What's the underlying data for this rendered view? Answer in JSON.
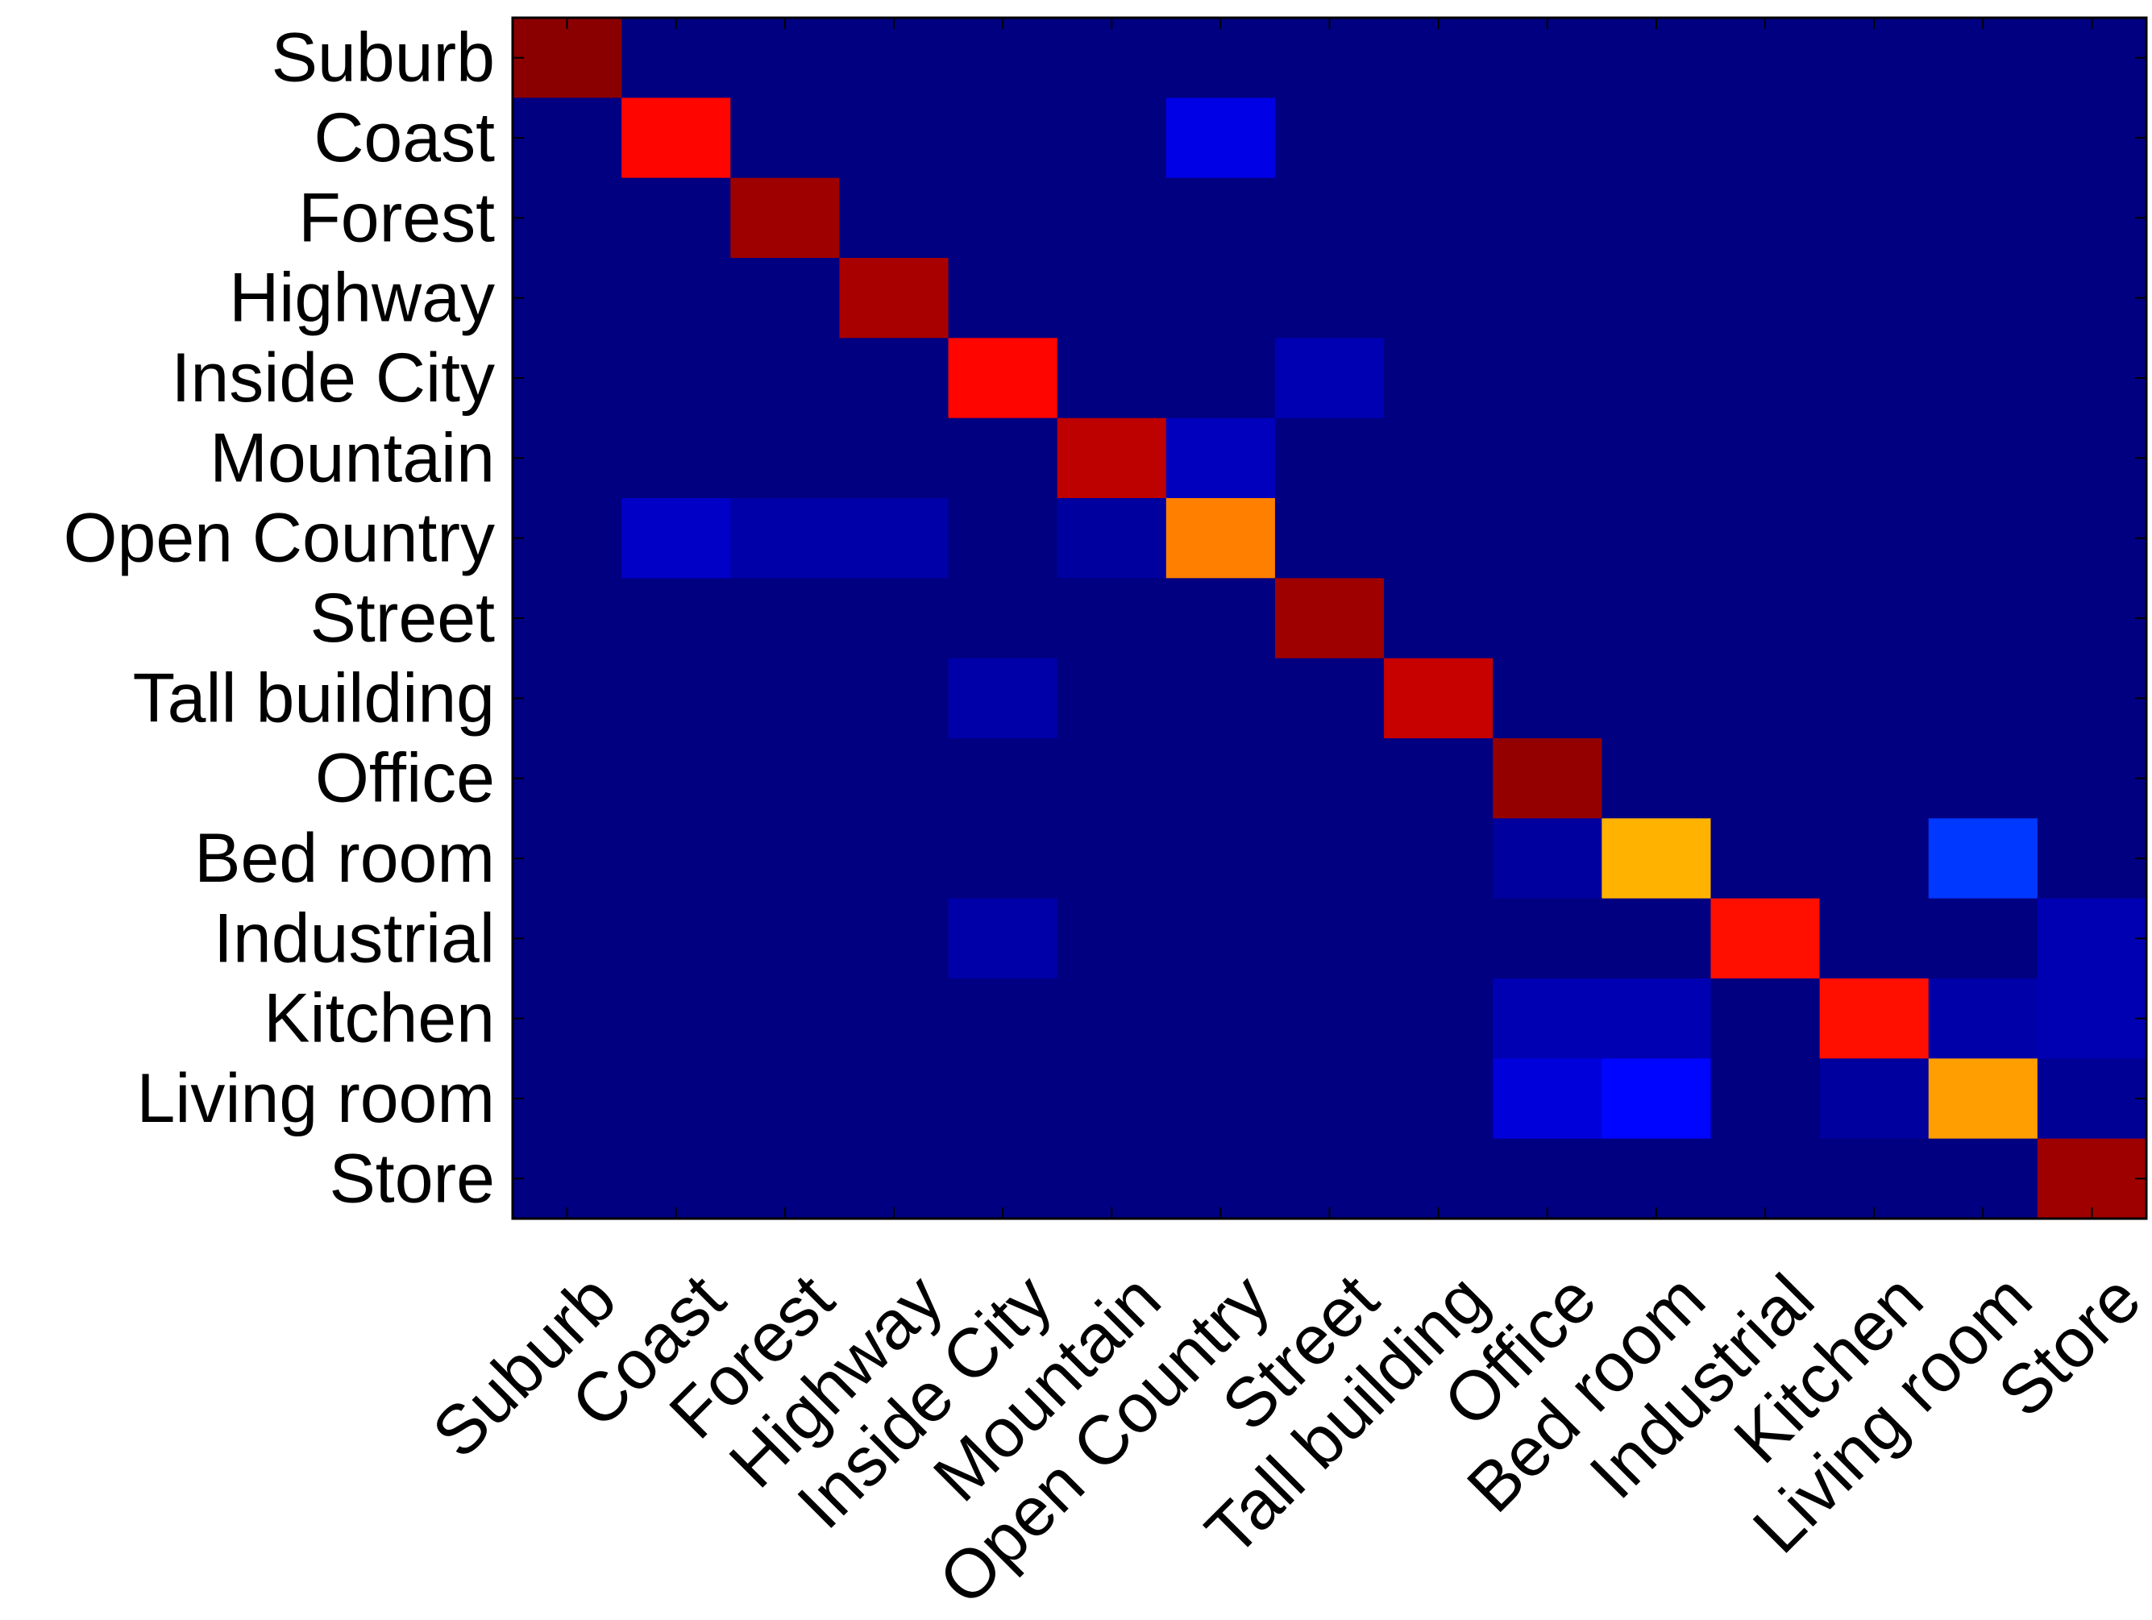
{
  "chart_data": {
    "type": "heatmap",
    "title": "",
    "xlabel": "",
    "ylabel": "",
    "colormap": "jet",
    "value_range": [
      0,
      1
    ],
    "rows": [
      "Suburb",
      "Coast",
      "Forest",
      "Highway",
      "Inside City",
      "Mountain",
      "Open Country",
      "Street",
      "Tall building",
      "Office",
      "Bed room",
      "Industrial",
      "Kitchen",
      "Living room",
      "Store"
    ],
    "columns": [
      "Suburb",
      "Coast",
      "Forest",
      "Highway",
      "Inside City",
      "Mountain",
      "Open Country",
      "Street",
      "Tall building",
      "Office",
      "Bed room",
      "Industrial",
      "Kitchen",
      "Living room",
      "Store"
    ],
    "values": [
      [
        0.99,
        0.0,
        0.0,
        0.0,
        0.0,
        0.0,
        0.0,
        0.0,
        0.0,
        0.0,
        0.0,
        0.0,
        0.0,
        0.0,
        0.0
      ],
      [
        0.0,
        0.87,
        0.0,
        0.0,
        0.0,
        0.0,
        0.1,
        0.0,
        0.0,
        0.0,
        0.0,
        0.0,
        0.0,
        0.0,
        0.0
      ],
      [
        0.0,
        0.0,
        0.97,
        0.0,
        0.0,
        0.0,
        0.0,
        0.0,
        0.0,
        0.0,
        0.0,
        0.0,
        0.0,
        0.0,
        0.0
      ],
      [
        0.0,
        0.0,
        0.0,
        0.96,
        0.0,
        0.0,
        0.0,
        0.0,
        0.0,
        0.0,
        0.0,
        0.0,
        0.0,
        0.0,
        0.0
      ],
      [
        0.0,
        0.0,
        0.0,
        0.0,
        0.87,
        0.0,
        0.0,
        0.05,
        0.0,
        0.0,
        0.0,
        0.0,
        0.0,
        0.0,
        0.0
      ],
      [
        0.0,
        0.0,
        0.0,
        0.0,
        0.0,
        0.94,
        0.06,
        0.0,
        0.0,
        0.0,
        0.0,
        0.0,
        0.0,
        0.0,
        0.0
      ],
      [
        0.0,
        0.07,
        0.04,
        0.04,
        0.0,
        0.03,
        0.75,
        0.0,
        0.0,
        0.0,
        0.0,
        0.0,
        0.0,
        0.0,
        0.0
      ],
      [
        0.0,
        0.0,
        0.0,
        0.0,
        0.0,
        0.0,
        0.0,
        0.97,
        0.0,
        0.0,
        0.0,
        0.0,
        0.0,
        0.0,
        0.0
      ],
      [
        0.0,
        0.0,
        0.0,
        0.0,
        0.04,
        0.0,
        0.0,
        0.0,
        0.93,
        0.0,
        0.0,
        0.0,
        0.0,
        0.0,
        0.0
      ],
      [
        0.0,
        0.0,
        0.0,
        0.0,
        0.0,
        0.0,
        0.0,
        0.0,
        0.0,
        0.98,
        0.0,
        0.0,
        0.0,
        0.0,
        0.0
      ],
      [
        0.0,
        0.0,
        0.0,
        0.0,
        0.0,
        0.0,
        0.0,
        0.0,
        0.0,
        0.03,
        0.7,
        0.0,
        0.0,
        0.18,
        0.0
      ],
      [
        0.0,
        0.0,
        0.0,
        0.0,
        0.04,
        0.0,
        0.0,
        0.0,
        0.0,
        0.0,
        0.0,
        0.86,
        0.0,
        0.0,
        0.05
      ],
      [
        0.0,
        0.0,
        0.0,
        0.0,
        0.0,
        0.0,
        0.0,
        0.0,
        0.0,
        0.05,
        0.05,
        0.0,
        0.86,
        0.04,
        0.05
      ],
      [
        0.0,
        0.0,
        0.0,
        0.0,
        0.0,
        0.0,
        0.0,
        0.0,
        0.0,
        0.09,
        0.13,
        0.0,
        0.03,
        0.72,
        0.02
      ],
      [
        0.0,
        0.0,
        0.0,
        0.0,
        0.0,
        0.0,
        0.0,
        0.0,
        0.0,
        0.0,
        0.0,
        0.0,
        0.0,
        0.0,
        0.97
      ]
    ]
  }
}
